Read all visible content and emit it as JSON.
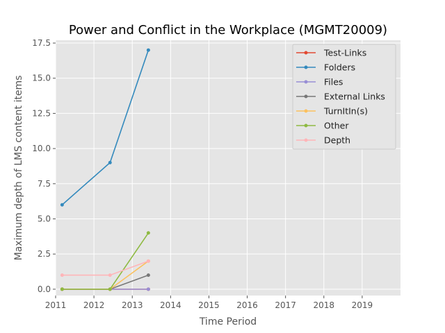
{
  "chart_data": {
    "type": "line",
    "title": "Power and Conflict in the Workplace (MGMT20009)",
    "xlabel": "Time Period",
    "ylabel": "Maximum depth of LMS content items",
    "xlim": [
      2011,
      2020
    ],
    "ylim": [
      -0.45,
      17.7
    ],
    "x_ticks": [
      2011,
      2012,
      2013,
      2014,
      2015,
      2016,
      2017,
      2018,
      2019
    ],
    "y_ticks": [
      0.0,
      2.5,
      5.0,
      7.5,
      10.0,
      12.5,
      15.0,
      17.5
    ],
    "y_tick_labels": [
      "0.0",
      "2.5",
      "5.0",
      "7.5",
      "10.0",
      "12.5",
      "15.0",
      "17.5"
    ],
    "grid": true,
    "legend_position": "top-right",
    "x": [
      2011.17,
      2012.42,
      2013.42
    ],
    "series": [
      {
        "name": "Test-Links",
        "color": "#E24A33",
        "values": [
          0,
          0,
          0
        ]
      },
      {
        "name": "Folders",
        "color": "#348ABD",
        "values": [
          6,
          9,
          17
        ]
      },
      {
        "name": "Files",
        "color": "#988ED5",
        "values": [
          0,
          0,
          0
        ]
      },
      {
        "name": "External Links",
        "color": "#777777",
        "values": [
          0,
          0,
          1
        ]
      },
      {
        "name": "TurnItIn(s)",
        "color": "#FBC15E",
        "values": [
          0,
          0,
          2
        ]
      },
      {
        "name": "Other",
        "color": "#8EBA42",
        "values": [
          0,
          0,
          4
        ]
      },
      {
        "name": "Depth",
        "color": "#FFB5B8",
        "values": [
          1,
          1,
          2
        ]
      }
    ]
  }
}
